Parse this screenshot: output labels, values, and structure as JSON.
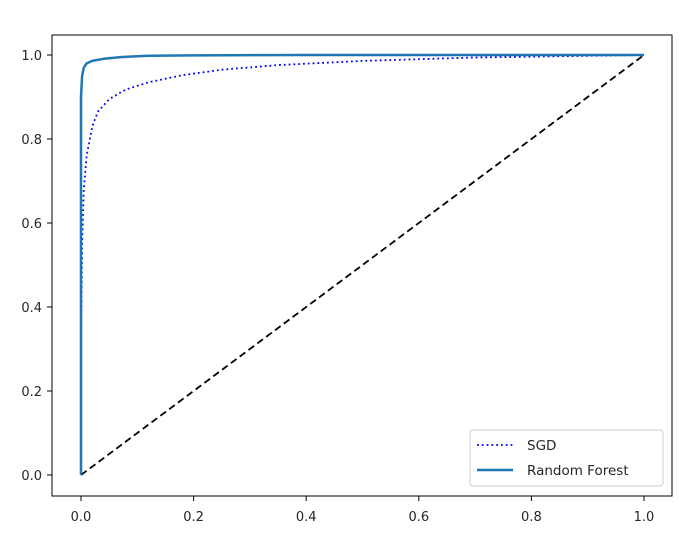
{
  "chart_data": {
    "type": "line",
    "title": "",
    "xlabel": "",
    "ylabel": "",
    "xlim": [
      -0.05,
      1.05
    ],
    "ylim": [
      -0.05,
      1.05
    ],
    "grid": false,
    "legend_position": "lower right",
    "x_ticks": [
      "0.0",
      "0.2",
      "0.4",
      "0.6",
      "0.8",
      "1.0"
    ],
    "y_ticks": [
      "0.0",
      "0.2",
      "0.4",
      "0.6",
      "0.8",
      "1.0"
    ],
    "series": [
      {
        "name": "SGD",
        "style": "dotted",
        "color": "#0000ff",
        "x": [
          0.0,
          0.0,
          0.002,
          0.005,
          0.01,
          0.02,
          0.03,
          0.05,
          0.08,
          0.12,
          0.18,
          0.25,
          0.35,
          0.5,
          0.7,
          1.0
        ],
        "y": [
          0.0,
          0.3,
          0.55,
          0.68,
          0.76,
          0.83,
          0.865,
          0.895,
          0.918,
          0.935,
          0.952,
          0.965,
          0.976,
          0.986,
          0.994,
          1.0
        ]
      },
      {
        "name": "Random Forest",
        "style": "solid",
        "color": "#1f77b4",
        "x": [
          0.0,
          0.0,
          0.002,
          0.005,
          0.01,
          0.02,
          0.04,
          0.07,
          0.12,
          0.2,
          0.4,
          1.0
        ],
        "y": [
          0.0,
          0.9,
          0.95,
          0.97,
          0.98,
          0.986,
          0.991,
          0.995,
          0.998,
          0.999,
          1.0,
          1.0
        ]
      },
      {
        "name": "Random classifier (diagonal)",
        "style": "dashed",
        "color": "#000000",
        "in_legend": false,
        "x": [
          0.0,
          1.0
        ],
        "y": [
          0.0,
          1.0
        ]
      }
    ]
  },
  "legend": {
    "items": [
      {
        "label": "SGD"
      },
      {
        "label": "Random Forest"
      }
    ]
  }
}
